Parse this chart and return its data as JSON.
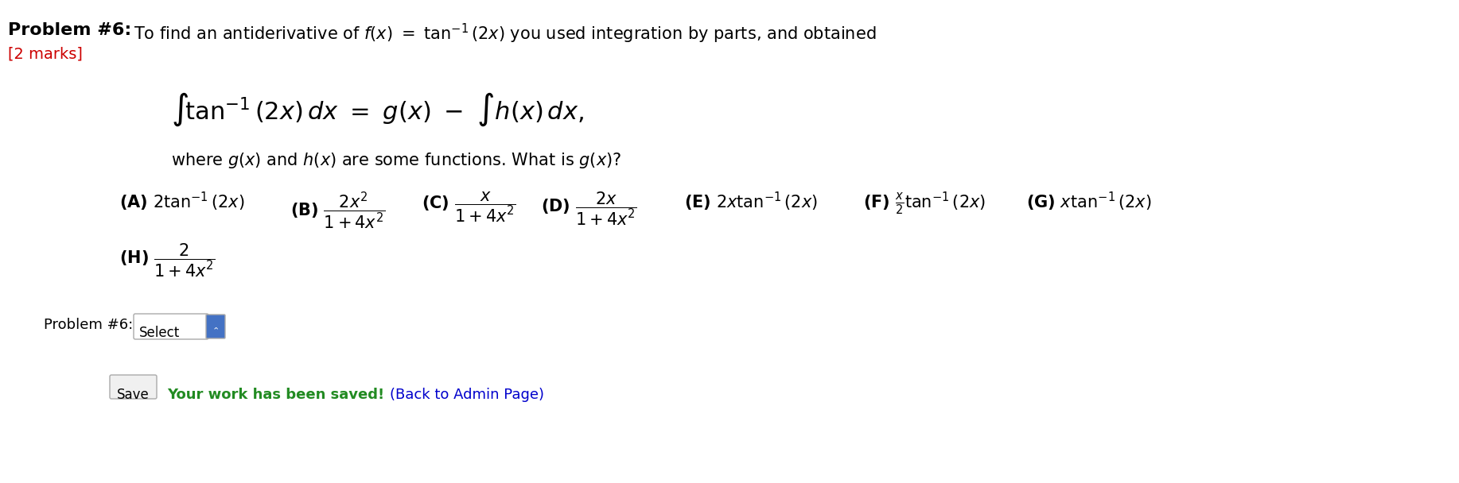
{
  "background_color": "#ffffff",
  "title_bold": "Problem #6:",
  "title_normal": " To find an antiderivative of ",
  "title_math": "f(x) = tan⁻¹(2x) you used integration by parts, and obtained",
  "marks_text": "[2 marks]",
  "marks_color": "#cc0000",
  "integral_line": "∫tan⁻¹(2x) dx  =  g(x) –  ∫h(x) dx,",
  "where_line": "where g(x) and h(x) are some functions. What is g(x)?",
  "problem_label": "Problem #6:",
  "select_text": "Select",
  "save_text": "Save",
  "saved_text": "Your work has been saved!",
  "saved_color": "#228B22",
  "admin_text": " (Back to Admin Page)",
  "admin_color": "#0000cc",
  "fig_width": 18.34,
  "fig_height": 6.08,
  "dpi": 100
}
